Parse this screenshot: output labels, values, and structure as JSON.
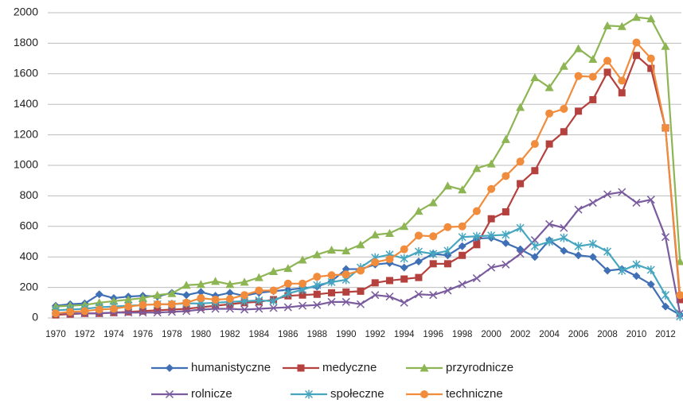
{
  "chart_data": {
    "type": "line",
    "categories": [
      "1970",
      null,
      "1972",
      null,
      "1974",
      null,
      "1976",
      null,
      "1978",
      null,
      "1980",
      null,
      "1982",
      null,
      "1984",
      null,
      "1986",
      null,
      "1988",
      null,
      "1990",
      null,
      "1992",
      null,
      "1994",
      null,
      "1996",
      null,
      "1998",
      null,
      "2000",
      null,
      "2002",
      null,
      "2004",
      null,
      "2006",
      null,
      "2008",
      null,
      "2010",
      null,
      "2012",
      null
    ],
    "ylim": [
      0,
      2000
    ],
    "yticks": [
      0,
      200,
      400,
      600,
      800,
      1000,
      1200,
      1400,
      1600,
      1800,
      2000
    ],
    "grid": true,
    "series": [
      {
        "name": "humanistyczne",
        "color": "#3f6fb4",
        "marker": "diamond",
        "values": [
          80,
          90,
          95,
          155,
          130,
          140,
          145,
          140,
          165,
          150,
          170,
          145,
          165,
          145,
          165,
          175,
          185,
          195,
          205,
          240,
          320,
          320,
          350,
          360,
          330,
          370,
          420,
          410,
          470,
          520,
          525,
          490,
          450,
          400,
          510,
          440,
          410,
          400,
          310,
          320,
          275,
          220,
          75,
          20
        ]
      },
      {
        "name": "medyczne",
        "color": "#b4413e",
        "marker": "square",
        "values": [
          20,
          25,
          30,
          30,
          35,
          40,
          45,
          50,
          55,
          60,
          70,
          80,
          90,
          100,
          105,
          120,
          145,
          150,
          155,
          165,
          170,
          175,
          230,
          245,
          255,
          265,
          355,
          355,
          410,
          480,
          650,
          695,
          880,
          965,
          1140,
          1220,
          1355,
          1430,
          1610,
          1475,
          1720,
          1635,
          1245,
          120
        ]
      },
      {
        "name": "przyrodnicze",
        "color": "#8db554",
        "marker": "triangle",
        "values": [
          75,
          80,
          85,
          100,
          110,
          120,
          130,
          150,
          160,
          215,
          220,
          240,
          220,
          235,
          265,
          305,
          325,
          380,
          415,
          445,
          440,
          480,
          545,
          555,
          600,
          700,
          755,
          865,
          840,
          980,
          1010,
          1170,
          1380,
          1575,
          1510,
          1650,
          1765,
          1695,
          1915,
          1910,
          1970,
          1960,
          1780,
          370
        ]
      },
      {
        "name": "rolnicze",
        "color": "#7a5c9e",
        "marker": "x",
        "values": [
          30,
          30,
          30,
          30,
          35,
          35,
          35,
          35,
          40,
          45,
          55,
          60,
          60,
          55,
          60,
          65,
          70,
          80,
          85,
          105,
          105,
          90,
          150,
          140,
          100,
          155,
          150,
          180,
          220,
          260,
          330,
          350,
          420,
          510,
          615,
          590,
          710,
          755,
          810,
          825,
          755,
          775,
          530,
          30
        ]
      },
      {
        "name": "społeczne",
        "color": "#46a6c0",
        "marker": "star",
        "values": [
          50,
          55,
          60,
          70,
          75,
          80,
          85,
          90,
          90,
          95,
          95,
          100,
          105,
          110,
          115,
          110,
          160,
          185,
          215,
          235,
          250,
          330,
          395,
          415,
          390,
          435,
          420,
          440,
          530,
          535,
          540,
          545,
          590,
          470,
          500,
          525,
          470,
          485,
          435,
          310,
          350,
          315,
          150,
          10
        ]
      },
      {
        "name": "techniczne",
        "color": "#f08c3c",
        "marker": "circle",
        "values": [
          30,
          40,
          45,
          55,
          60,
          75,
          85,
          90,
          90,
          100,
          130,
          120,
          125,
          150,
          180,
          180,
          225,
          225,
          270,
          280,
          285,
          310,
          365,
          385,
          450,
          540,
          535,
          595,
          600,
          700,
          845,
          930,
          1025,
          1140,
          1340,
          1370,
          1585,
          1580,
          1685,
          1555,
          1805,
          1700,
          1245,
          150
        ]
      }
    ]
  }
}
